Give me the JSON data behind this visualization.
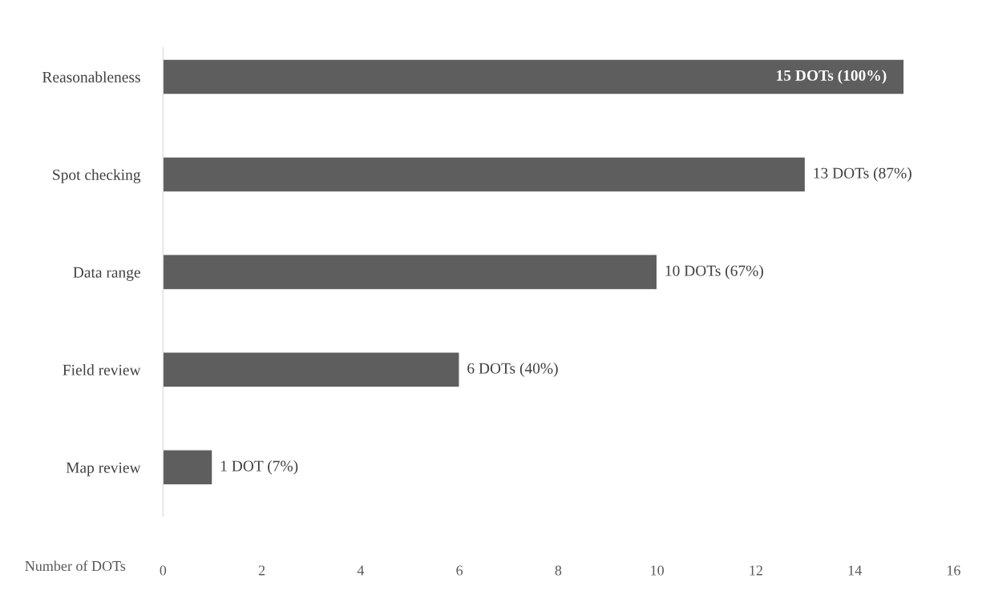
{
  "chart_data": {
    "type": "bar",
    "orientation": "horizontal",
    "xlabel": "Number of DOTs",
    "categories": [
      "Reasonableness",
      "Spot checking",
      "Data range",
      "Field review",
      "Map review"
    ],
    "values": [
      15,
      13,
      10,
      6,
      1
    ],
    "color": "#5e5e5e",
    "value_labels": [
      "15 DOTs (100%)",
      "13 DOTs (87%)",
      "10 DOTs (67%)",
      "6 DOTs (40%)",
      "1 DOT (7%)"
    ],
    "xlim": [
      0,
      16
    ],
    "xticks": [
      0,
      2,
      4,
      6,
      8,
      10,
      12,
      14,
      16
    ],
    "grid": false,
    "legend": false
  }
}
